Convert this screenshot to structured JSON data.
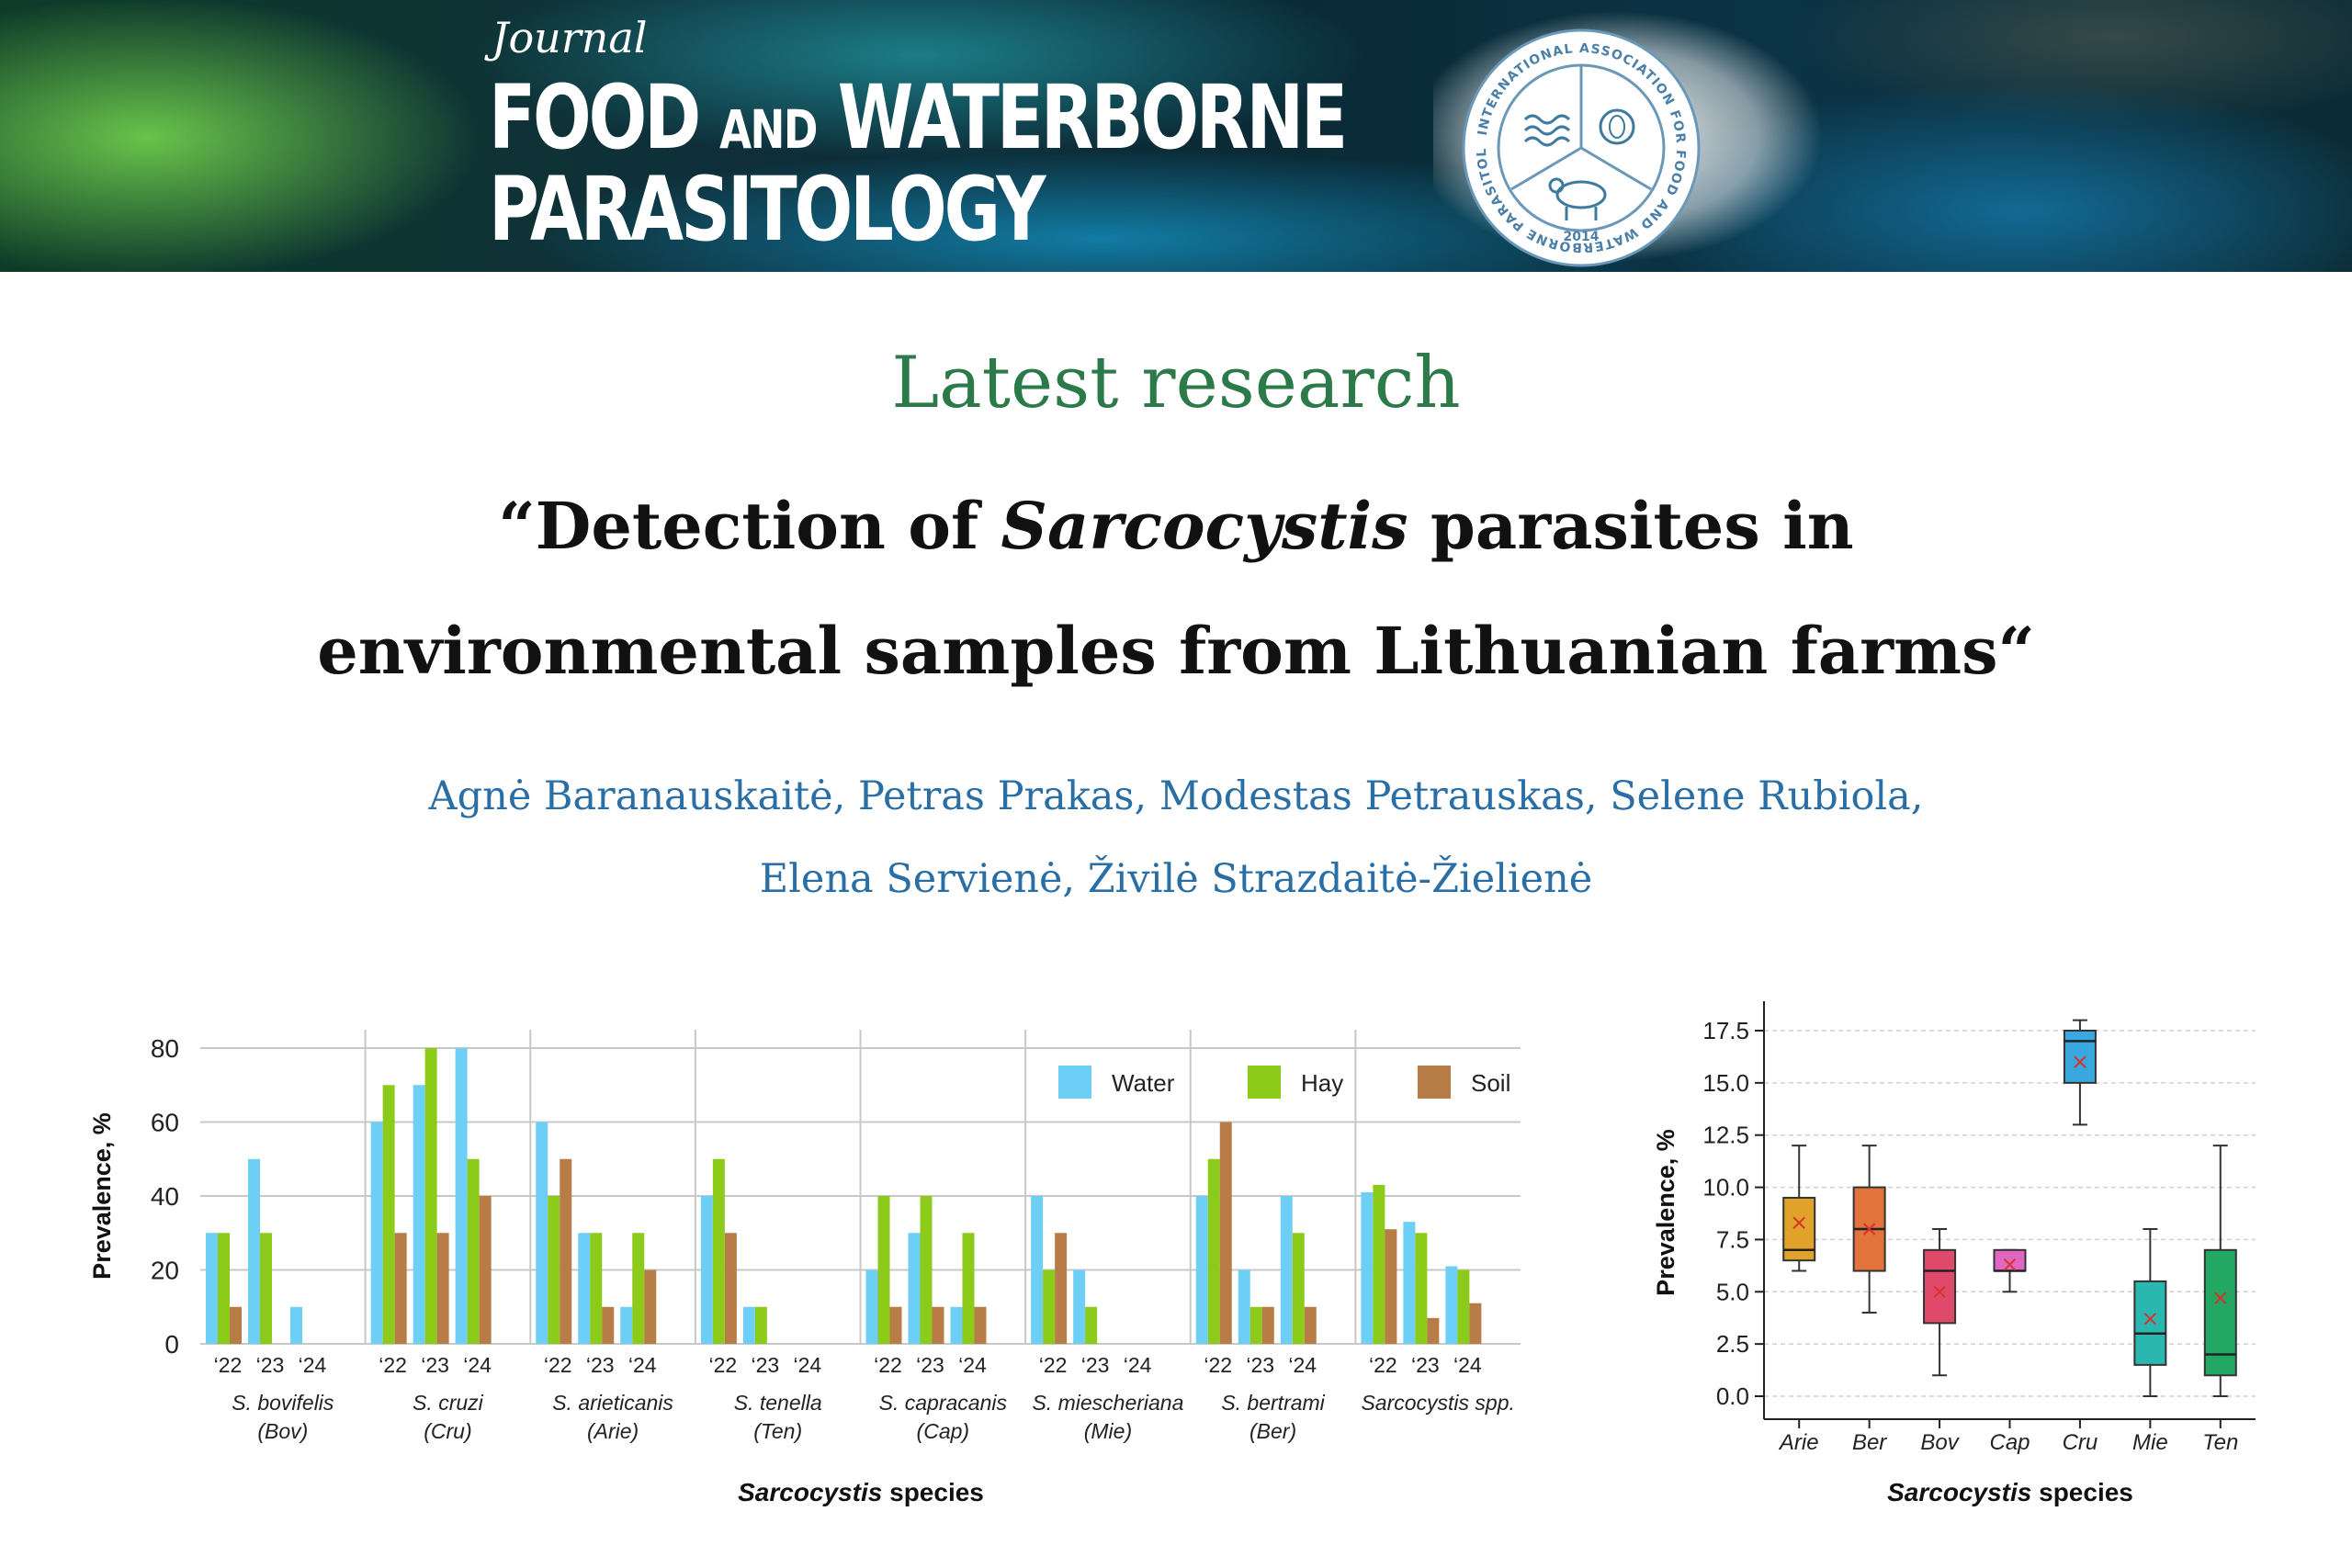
{
  "header": {
    "journal_small": "Journal",
    "journal_big_a": "FOOD",
    "journal_big_and": "AND",
    "journal_big_b": "WATERBORNE",
    "journal_big_c": "PARASITOLOGY",
    "seal_text": "INTERNATIONAL ASSOCIATION FOR FOOD AND WATERBORNE PARASITOLOGY",
    "seal_year": "2014"
  },
  "section_label": "Latest research",
  "article": {
    "title_open": "“Detection of ",
    "title_italic": "Sarcocystis",
    "title_rest1": " parasites in",
    "title_line2": "environmental samples from Lithuanian farms“",
    "authors_line1": "Agnė Baranauskaitė, Petras Prakas, Modestas Petrauskas, Selene Rubiola,",
    "authors_line2": "Elena Servienė, Živilė Strazdaitė-Žielienė"
  },
  "colors": {
    "heading": "#2c7a4a",
    "authors": "#2a6ea6",
    "water": "#6ecff6",
    "hay": "#8ccb1a",
    "soil": "#b87c46"
  },
  "chart_data": [
    {
      "type": "bar",
      "ylabel": "Prevalence, %",
      "xlabel_italic": "Sarcocystis",
      "xlabel_rest": " species",
      "ylim": [
        0,
        80
      ],
      "yticks": [
        0,
        20,
        40,
        60,
        80
      ],
      "grid": true,
      "legend_position": "top-right",
      "year_labels": [
        "‘22",
        "‘23",
        "‘24"
      ],
      "groups": [
        {
          "name": "S. bovifelis",
          "code": "(Bov)",
          "water": [
            30,
            50,
            10
          ],
          "hay": [
            30,
            30,
            0
          ],
          "soil": [
            10,
            0,
            0
          ]
        },
        {
          "name": "S. cruzi",
          "code": "(Cru)",
          "water": [
            60,
            70,
            80
          ],
          "hay": [
            70,
            80,
            50
          ],
          "soil": [
            30,
            30,
            40
          ]
        },
        {
          "name": "S. arieticanis",
          "code": "(Arie)",
          "water": [
            60,
            30,
            10
          ],
          "hay": [
            40,
            30,
            30
          ],
          "soil": [
            50,
            10,
            20
          ]
        },
        {
          "name": "S. tenella",
          "code": "(Ten)",
          "water": [
            40,
            10,
            0
          ],
          "hay": [
            50,
            10,
            0
          ],
          "soil": [
            30,
            0,
            0
          ]
        },
        {
          "name": "S. capracanis",
          "code": "(Cap)",
          "water": [
            20,
            30,
            10
          ],
          "hay": [
            40,
            40,
            30
          ],
          "soil": [
            10,
            10,
            10
          ]
        },
        {
          "name": "S. miescheriana",
          "code": "(Mie)",
          "water": [
            40,
            20,
            0
          ],
          "hay": [
            20,
            10,
            0
          ],
          "soil": [
            30,
            0,
            0
          ]
        },
        {
          "name": "S. bertrami",
          "code": "(Ber)",
          "water": [
            40,
            20,
            40
          ],
          "hay": [
            50,
            10,
            30
          ],
          "soil": [
            60,
            10,
            10
          ]
        },
        {
          "name": "Sarcocystis spp.",
          "code": "",
          "water": [
            41,
            33,
            21
          ],
          "hay": [
            43,
            30,
            20
          ],
          "soil": [
            31,
            7,
            11
          ]
        }
      ],
      "series": [
        {
          "name": "Water",
          "color": "#6ecff6"
        },
        {
          "name": "Hay",
          "color": "#8ccb1a"
        },
        {
          "name": "Soil",
          "color": "#b87c46"
        }
      ]
    },
    {
      "type": "box",
      "ylabel": "Prevalence, %",
      "xlabel_italic": "Sarcocystis",
      "xlabel_rest": " species",
      "ylim": [
        0,
        18.5
      ],
      "yticks": [
        "0.0",
        "2.5",
        "5.0",
        "7.5",
        "10.0",
        "12.5",
        "15.0",
        "17.5"
      ],
      "grid": true,
      "categories": [
        {
          "label": "Arie",
          "min": 6,
          "q1": 6.5,
          "median": 7,
          "q3": 9.5,
          "max": 12,
          "mean": 8.3,
          "color": "#e0a22a"
        },
        {
          "label": "Ber",
          "min": 4,
          "q1": 6,
          "median": 8,
          "q3": 10,
          "max": 12,
          "mean": 8,
          "color": "#e2733a"
        },
        {
          "label": "Bov",
          "min": 1,
          "q1": 3.5,
          "median": 6,
          "q3": 7,
          "max": 8,
          "mean": 5,
          "color": "#e04a6a"
        },
        {
          "label": "Cap",
          "min": 5,
          "q1": 6,
          "median": 6,
          "q3": 7,
          "max": 7,
          "mean": 6.3,
          "color": "#e066c2"
        },
        {
          "label": "Cru",
          "min": 13,
          "q1": 15,
          "median": 17,
          "q3": 17.5,
          "max": 18,
          "mean": 16,
          "color": "#3aa8e0"
        },
        {
          "label": "Mie",
          "min": 0,
          "q1": 1.5,
          "median": 3,
          "q3": 5.5,
          "max": 8,
          "mean": 3.7,
          "color": "#2ab7b0"
        },
        {
          "label": "Ten",
          "min": 0,
          "q1": 1,
          "median": 2,
          "q3": 7,
          "max": 12,
          "mean": 4.7,
          "color": "#22a862"
        }
      ]
    }
  ]
}
